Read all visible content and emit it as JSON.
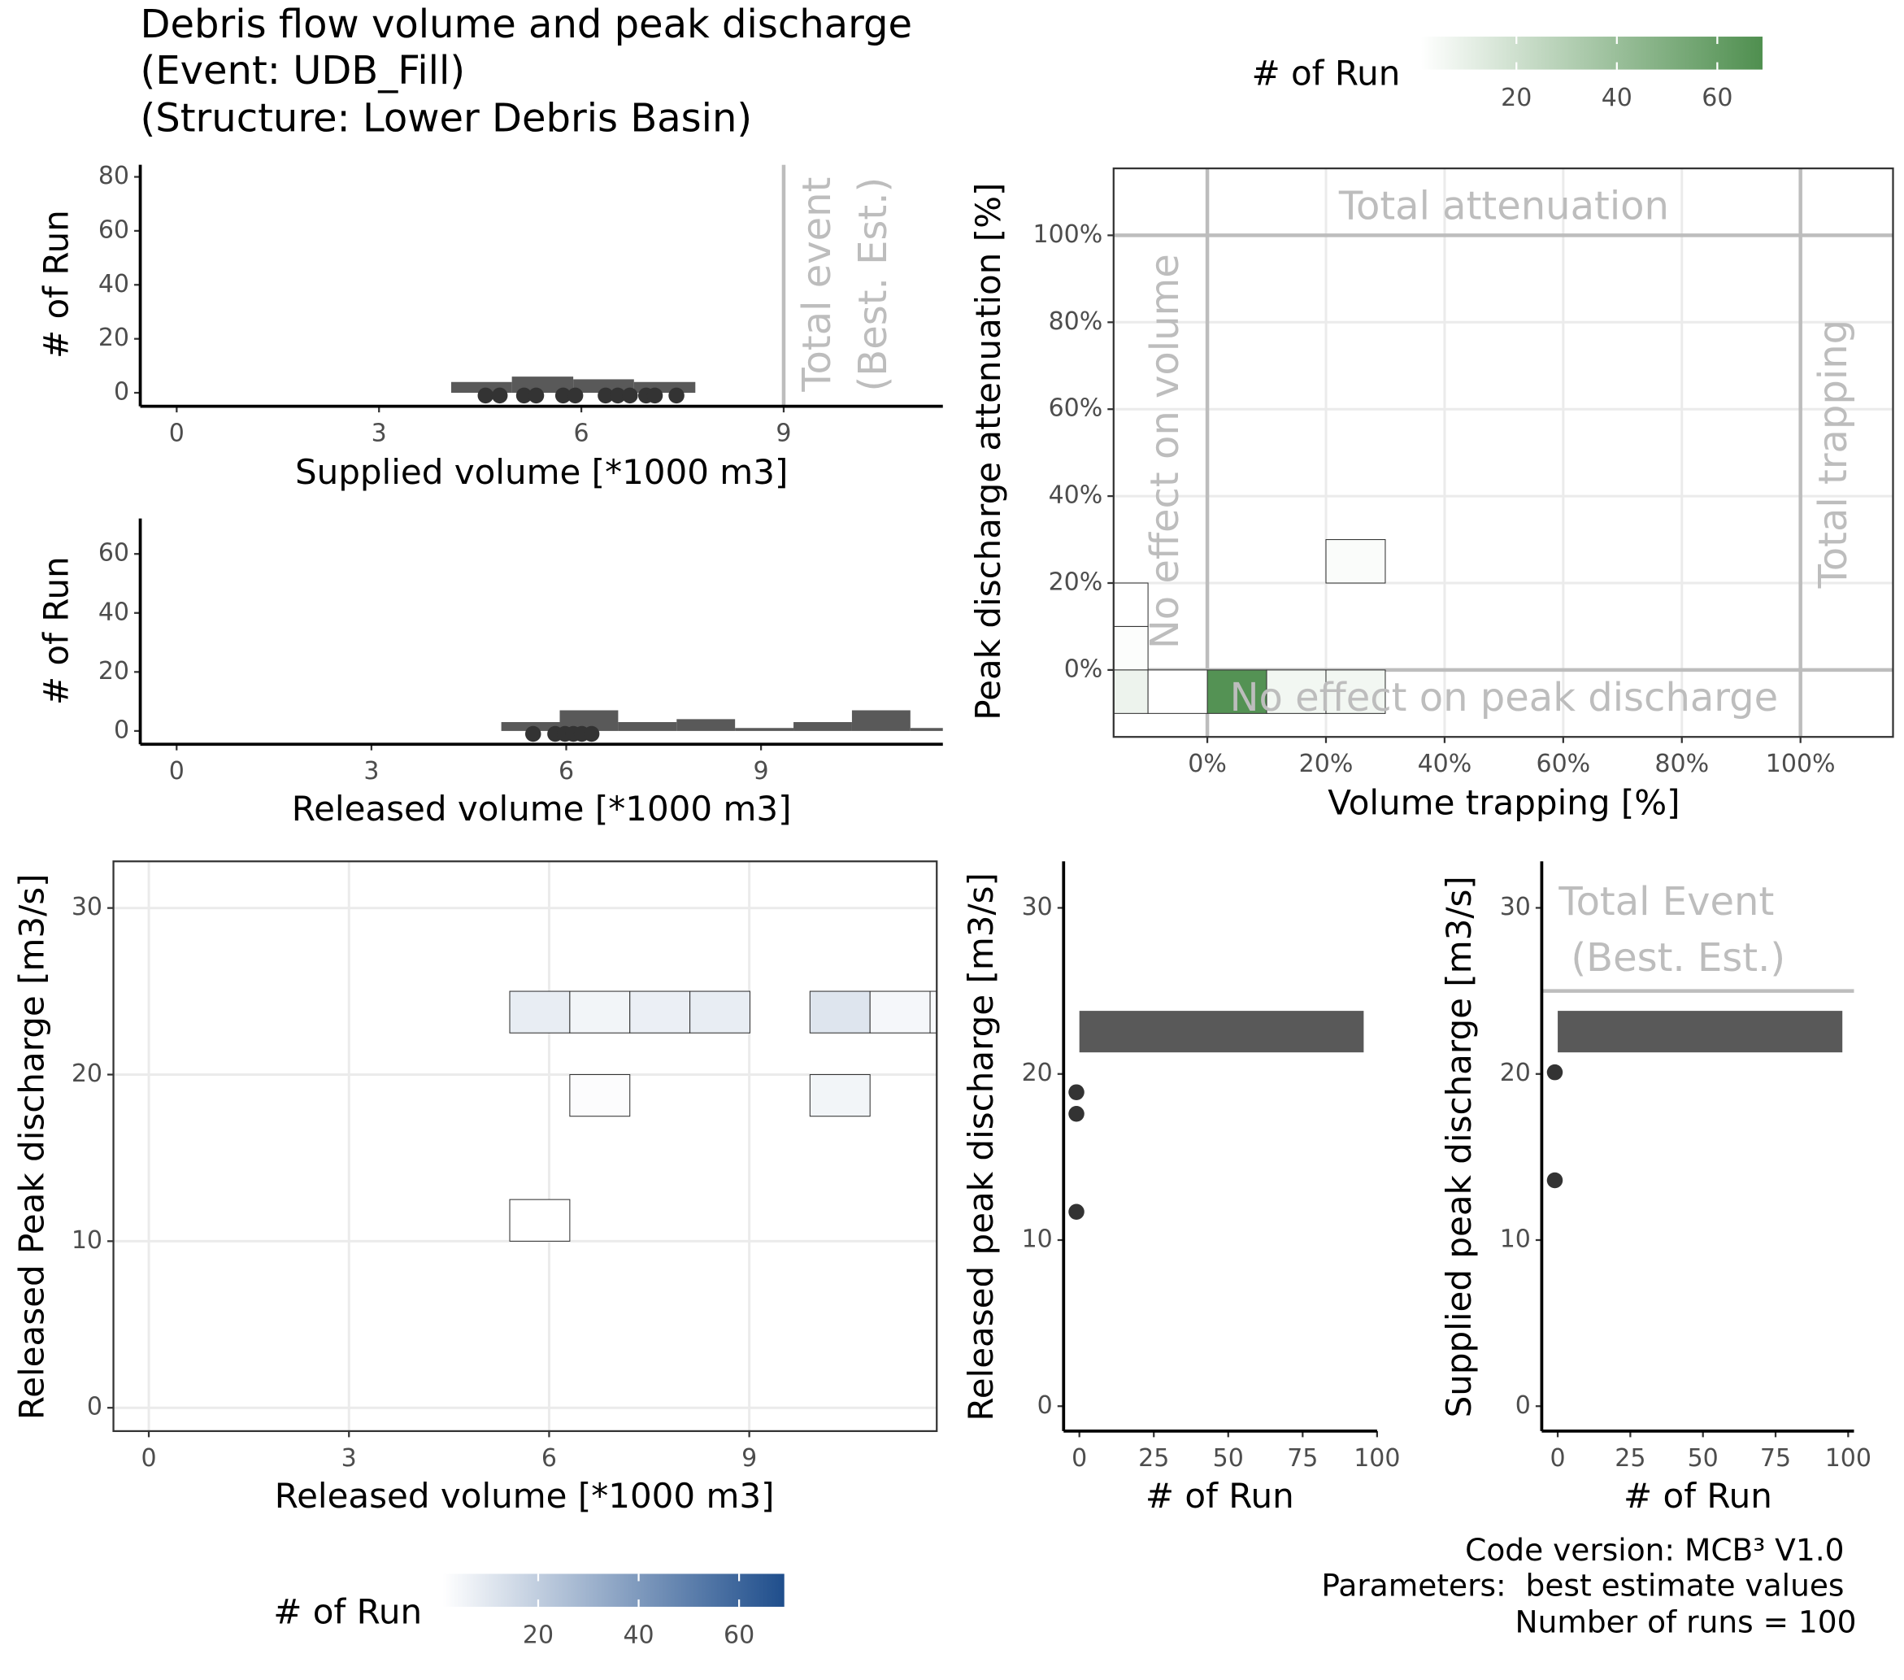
{
  "title": [
    "Debris flow volume and peak discharge",
    "(Event: UDB_Fill)",
    "(Structure: Lower Debris Basin)"
  ],
  "caption": [
    "Code version: MCB³ V1.0",
    "Parameters:  best estimate values",
    "Number of runs = 100"
  ],
  "chart_data": [
    {
      "type": "histogram",
      "xlabel": "Supplied volume [*1000 m3]",
      "ylabel": "# of Run",
      "xlim": [
        -0.54,
        11.36
      ],
      "ylim": [
        -5,
        84.5
      ],
      "xticks": [
        0,
        3,
        6,
        9
      ],
      "yticks": [
        0,
        20,
        40,
        60,
        80
      ],
      "bins": [
        4.07,
        4.97,
        5.88,
        6.78,
        7.69
      ],
      "counts": [
        4,
        6,
        5,
        4
      ],
      "color": "#595959",
      "points": {
        "x": [
          4.58,
          4.79,
          5.15,
          5.33,
          5.73,
          5.91,
          6.36,
          6.54,
          6.72,
          6.96,
          7.09,
          7.41
        ],
        "y": [
          -1,
          -1,
          -1,
          -1,
          -1,
          -1,
          -1,
          -1,
          -1,
          -1,
          -1,
          -1
        ]
      },
      "vlines": [
        9
      ],
      "annotations": [
        "Total event",
        "(Best. Est.)"
      ]
    },
    {
      "type": "histogram",
      "xlabel": "Released volume [*1000 m3]",
      "ylabel": "# of Run",
      "xlim": [
        -0.56,
        11.8
      ],
      "ylim": [
        -4.5,
        72
      ],
      "xticks": [
        0,
        3,
        6,
        9
      ],
      "yticks": [
        0,
        20,
        40,
        60
      ],
      "bins": [
        5.0,
        5.9,
        6.8,
        7.7,
        8.6,
        9.5,
        10.4,
        11.3,
        12.2
      ],
      "counts": [
        3,
        7,
        3,
        4,
        1,
        3,
        7,
        1
      ],
      "color": "#595959",
      "points": {
        "x": [
          5.49,
          5.83,
          5.98,
          6.11,
          6.24,
          6.39
        ],
        "y": [
          -1,
          -1,
          -1,
          -1,
          -1,
          -1
        ]
      }
    },
    {
      "type": "heatmap",
      "xlabel": "Volume trapping [%]",
      "ylabel": "Peak discharge attenuation [%]",
      "xlim": [
        -15.8,
        115.6
      ],
      "ylim": [
        -15.4,
        115.4
      ],
      "xticks": [
        {
          "value": 0,
          "label": "0%"
        },
        {
          "value": 20,
          "label": "20%"
        },
        {
          "value": 40,
          "label": "40%"
        },
        {
          "value": 60,
          "label": "60%"
        },
        {
          "value": 80,
          "label": "80%"
        },
        {
          "value": 100,
          "label": "100%"
        }
      ],
      "yticks": [
        {
          "value": 0,
          "label": "0%"
        },
        {
          "value": 20,
          "label": "20%"
        },
        {
          "value": 40,
          "label": "40%"
        },
        {
          "value": 60,
          "label": "60%"
        },
        {
          "value": 80,
          "label": "80%"
        },
        {
          "value": 100,
          "label": "100%"
        }
      ],
      "tile_size": [
        10,
        10
      ],
      "tiles": {
        "x": [
          5,
          15,
          25,
          25,
          -15,
          -15,
          -15,
          -5
        ],
        "y": [
          -5,
          -5,
          -5,
          25,
          15,
          5,
          -5,
          -5
        ],
        "counts": [
          67,
          6,
          6,
          3,
          1,
          2,
          8,
          1
        ]
      },
      "color_low": "#ffffff",
      "color_high": "#4f8f4f",
      "colorlim": [
        1,
        69
      ],
      "colorbar_ticks": [
        20,
        40,
        60
      ],
      "colorbar_title": "# of Run",
      "hlines": [
        0,
        100
      ],
      "vlines": [
        0,
        100
      ],
      "annotations": [
        "Total attenuation",
        "No effect on volume",
        "Total trapping",
        "No effect on peak discharge"
      ]
    },
    {
      "type": "heatmap",
      "xlabel": "Released volume [*1000 m3]",
      "ylabel": "Released Peak discharge [m3/s]",
      "xlim": [
        -0.53,
        11.81
      ],
      "ylim": [
        -1.4,
        32.8
      ],
      "xticks": [
        0,
        3,
        6,
        9
      ],
      "yticks": [
        0,
        10,
        20,
        30
      ],
      "tile_size": [
        0.9,
        2.5
      ],
      "tiles": {
        "x": [
          5.86,
          6.76,
          7.66,
          8.56,
          10.36,
          11.26,
          12.16,
          6.76,
          10.36,
          5.86
        ],
        "y": [
          23.75,
          23.75,
          23.75,
          23.75,
          23.75,
          23.75,
          23.75,
          18.75,
          18.75,
          11.25
        ],
        "counts": [
          8,
          5,
          7,
          8,
          11,
          4,
          3,
          2,
          5,
          1
        ]
      },
      "color_low": "#ffffff",
      "color_high": "#1f4e8c",
      "colorlim": [
        1,
        69
      ],
      "colorbar_ticks": [
        20,
        40,
        60
      ],
      "colorbar_title": "# of Run"
    },
    {
      "type": "barh",
      "xlabel": "# of Run",
      "ylabel": "Released peak discharge [m3/s]",
      "xlim": [
        -5.3,
        100
      ],
      "ylim": [
        -1.5,
        32.8
      ],
      "xticks": [
        0,
        25,
        50,
        75,
        100
      ],
      "yticks": [
        0,
        10,
        20,
        30
      ],
      "bins": [
        21.3,
        23.8
      ],
      "counts": [
        95.5
      ],
      "color": "#595959",
      "points": {
        "x": [
          -1,
          -1,
          -1
        ],
        "y": [
          18.9,
          17.6,
          11.7
        ]
      }
    },
    {
      "type": "barh",
      "xlabel": "# of Run",
      "ylabel": "Supplied peak discharge [m3/s]",
      "xlim": [
        -5.5,
        102
      ],
      "ylim": [
        -1.5,
        32.8
      ],
      "xticks": [
        0,
        25,
        50,
        75,
        100
      ],
      "yticks": [
        0,
        10,
        20,
        30
      ],
      "bins": [
        21.3,
        23.8
      ],
      "counts": [
        98
      ],
      "color": "#595959",
      "points": {
        "x": [
          -1,
          -1
        ],
        "y": [
          20.1,
          13.6
        ]
      },
      "hlines": [
        25
      ],
      "annotations": [
        "Total Event",
        "(Best. Est.)"
      ]
    }
  ]
}
